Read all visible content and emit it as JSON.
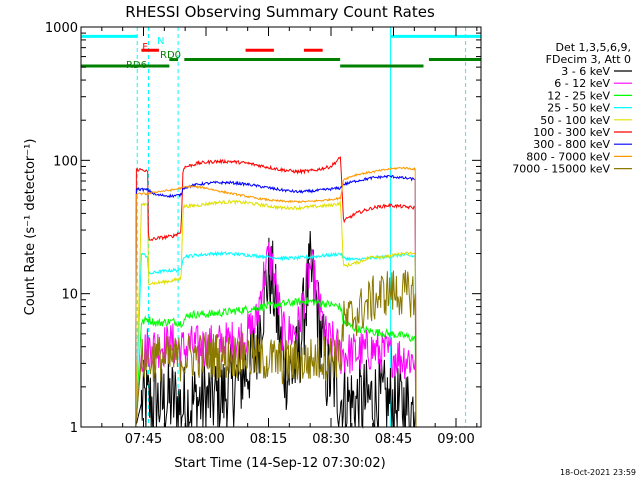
{
  "chart_data": {
    "type": "line",
    "title": "RHESSI Observing Summary Count Rates",
    "xlabel": "Start Time (14-Sep-12 07:30:02)",
    "ylabel": "Count Rate (s⁻¹ detector⁻¹)",
    "timestamp": "18-Oct-2021 23:59",
    "x_unit": "minutes after 07:30",
    "xlim": [
      0,
      96
    ],
    "ylim": [
      1,
      1000
    ],
    "y_scale": "log",
    "x_ticks": [
      {
        "value": 15,
        "label": "07:45"
      },
      {
        "value": 30,
        "label": "08:00"
      },
      {
        "value": 45,
        "label": "08:15"
      },
      {
        "value": 60,
        "label": "08:30"
      },
      {
        "value": 75,
        "label": "08:45"
      },
      {
        "value": 90,
        "label": "09:00"
      }
    ],
    "y_ticks": [
      {
        "value": 1,
        "label": "1"
      },
      {
        "value": 10,
        "label": "10"
      },
      {
        "value": 100,
        "label": "100"
      },
      {
        "value": 1000,
        "label": "1000"
      }
    ],
    "legend": {
      "placement": "right",
      "header": [
        "Det 1,3,5,6,9,",
        "FDecim 3, Att 0"
      ],
      "entries": [
        {
          "label": "3 - 6 keV",
          "color": "#000000"
        },
        {
          "label": "6 - 12 keV",
          "color": "#ff00ff"
        },
        {
          "label": "12 - 25 keV",
          "color": "#00ff00"
        },
        {
          "label": "25 - 50 keV",
          "color": "#00ffff"
        },
        {
          "label": "50 - 100 keV",
          "color": "#e0e000"
        },
        {
          "label": "100 - 300 keV",
          "color": "#ff0000"
        },
        {
          "label": "300 - 800 keV",
          "color": "#0000ff"
        },
        {
          "label": "800 - 7000 keV",
          "color": "#ff9900"
        },
        {
          "label": "7000 - 15000 keV",
          "color": "#8c7a00"
        }
      ]
    },
    "flags": [
      {
        "label": "N",
        "color": "#00ffff",
        "segments": [
          [
            0,
            13.5
          ],
          [
            74.3,
            96
          ]
        ],
        "level": 850
      },
      {
        "label": "F",
        "color": "#ff0000",
        "segments": [
          [
            14.5,
            18.7
          ],
          [
            39.5,
            46.3
          ],
          [
            53.5,
            58
          ]
        ],
        "level": 670
      },
      {
        "label": "RD0",
        "color": "#008000",
        "segments": [
          [
            21.2,
            23.3
          ],
          [
            24.8,
            62.2
          ],
          [
            83.5,
            96
          ]
        ],
        "level": 570
      },
      {
        "label": "RD6",
        "color": "#008000",
        "segments": [
          [
            0,
            14.5
          ],
          [
            14.5,
            21.2
          ],
          [
            62.2,
            82.2
          ]
        ],
        "level": 510
      }
    ],
    "cyan_markers": [
      0,
      13.5,
      16.2,
      23.3,
      74.3,
      92.3
    ],
    "data_start": 13.0,
    "data_end": 80.5,
    "series": [
      {
        "name": "3 - 6 keV",
        "color": "#000000",
        "points": [
          [
            13.1,
            1
          ],
          [
            14.5,
            1.5
          ],
          [
            16,
            1.5
          ],
          [
            18,
            1.5
          ],
          [
            22,
            1.6
          ],
          [
            24,
            1.4
          ],
          [
            26,
            1.5
          ],
          [
            30,
            1.6
          ],
          [
            34,
            1.7
          ],
          [
            38,
            2.3
          ],
          [
            40,
            2.8
          ],
          [
            42,
            3.5
          ],
          [
            43.5,
            8
          ],
          [
            45,
            14
          ],
          [
            46,
            12
          ],
          [
            47,
            7
          ],
          [
            48.5,
            3
          ],
          [
            50,
            2.5
          ],
          [
            52,
            3
          ],
          [
            54,
            9
          ],
          [
            55,
            14
          ],
          [
            56,
            11
          ],
          [
            57.5,
            5
          ],
          [
            59,
            2.5
          ],
          [
            61,
            2.2
          ],
          [
            62.3,
            1.6
          ],
          [
            66,
            1.5
          ],
          [
            70,
            1.6
          ],
          [
            74,
            1.5
          ],
          [
            78,
            1.4
          ],
          [
            80.2,
            1.3
          ],
          [
            80.4,
            1
          ]
        ]
      },
      {
        "name": "6 - 12 keV",
        "color": "#ff00ff",
        "points": [
          [
            13.1,
            1
          ],
          [
            14.5,
            3.5
          ],
          [
            16,
            4
          ],
          [
            18,
            4
          ],
          [
            22,
            4.2
          ],
          [
            24,
            3.8
          ],
          [
            26,
            4
          ],
          [
            30,
            4
          ],
          [
            34,
            4.2
          ],
          [
            38,
            4.5
          ],
          [
            40,
            5
          ],
          [
            42,
            6
          ],
          [
            43.5,
            12
          ],
          [
            45,
            19
          ],
          [
            46,
            16
          ],
          [
            47,
            10
          ],
          [
            48.5,
            5
          ],
          [
            50,
            5
          ],
          [
            52,
            5.5
          ],
          [
            54,
            11
          ],
          [
            55,
            16
          ],
          [
            56,
            13
          ],
          [
            57.5,
            7
          ],
          [
            59,
            4.5
          ],
          [
            61,
            4.2
          ],
          [
            62.3,
            3.5
          ],
          [
            66,
            3.6
          ],
          [
            70,
            3.8
          ],
          [
            74,
            3.5
          ],
          [
            78,
            3.3
          ],
          [
            80.2,
            3.2
          ],
          [
            80.4,
            1
          ]
        ]
      },
      {
        "name": "12 - 25 keV",
        "color": "#00ff00",
        "points": [
          [
            13.1,
            1
          ],
          [
            14.5,
            6
          ],
          [
            16,
            6.5
          ],
          [
            18,
            6
          ],
          [
            22,
            6.2
          ],
          [
            24,
            6
          ],
          [
            26,
            7
          ],
          [
            30,
            7
          ],
          [
            34,
            7.2
          ],
          [
            38,
            7.5
          ],
          [
            42,
            7.8
          ],
          [
            46,
            8.2
          ],
          [
            50,
            8.5
          ],
          [
            54,
            8.8
          ],
          [
            58,
            8.5
          ],
          [
            62.3,
            8
          ],
          [
            63,
            6
          ],
          [
            66,
            5.5
          ],
          [
            70,
            5.2
          ],
          [
            74,
            5
          ],
          [
            78,
            4.8
          ],
          [
            80.2,
            4.5
          ],
          [
            80.4,
            1
          ]
        ]
      },
      {
        "name": "25 - 50 keV",
        "color": "#00ffff",
        "points": [
          [
            13.1,
            1
          ],
          [
            14.5,
            20
          ],
          [
            16,
            19
          ],
          [
            16.2,
            14
          ],
          [
            18,
            14.5
          ],
          [
            22,
            15
          ],
          [
            24,
            15
          ],
          [
            24.5,
            19
          ],
          [
            28,
            19.5
          ],
          [
            32,
            20
          ],
          [
            36,
            20
          ],
          [
            40,
            19.5
          ],
          [
            44,
            19
          ],
          [
            48,
            18.5
          ],
          [
            52,
            18.5
          ],
          [
            56,
            19
          ],
          [
            60,
            19.5
          ],
          [
            62.3,
            20
          ],
          [
            63,
            18.5
          ],
          [
            66,
            18
          ],
          [
            70,
            18.5
          ],
          [
            74,
            19
          ],
          [
            77,
            19.5
          ],
          [
            80.2,
            19
          ],
          [
            80.4,
            1
          ]
        ]
      },
      {
        "name": "50 - 100 keV",
        "color": "#e0e000",
        "points": [
          [
            13.1,
            1
          ],
          [
            14.5,
            47
          ],
          [
            16,
            46
          ],
          [
            16.2,
            12
          ],
          [
            18,
            12
          ],
          [
            22,
            12.5
          ],
          [
            24,
            13
          ],
          [
            24.5,
            45
          ],
          [
            28,
            46
          ],
          [
            32,
            48
          ],
          [
            36,
            49
          ],
          [
            40,
            48
          ],
          [
            44,
            46
          ],
          [
            48,
            44
          ],
          [
            52,
            44
          ],
          [
            56,
            45
          ],
          [
            60,
            46
          ],
          [
            62.3,
            48
          ],
          [
            63,
            16
          ],
          [
            66,
            17
          ],
          [
            70,
            19
          ],
          [
            74,
            19
          ],
          [
            77,
            20
          ],
          [
            80.2,
            20
          ],
          [
            80.4,
            1
          ]
        ]
      },
      {
        "name": "100 - 300 keV",
        "color": "#ff0000",
        "points": [
          [
            13.1,
            1
          ],
          [
            13.3,
            85
          ],
          [
            15,
            85
          ],
          [
            16,
            82
          ],
          [
            16.2,
            25
          ],
          [
            18,
            26
          ],
          [
            22,
            27
          ],
          [
            24,
            29
          ],
          [
            24.5,
            88
          ],
          [
            28,
            95
          ],
          [
            32,
            98
          ],
          [
            36,
            98
          ],
          [
            40,
            95
          ],
          [
            44,
            90
          ],
          [
            48,
            85
          ],
          [
            52,
            82
          ],
          [
            56,
            84
          ],
          [
            60,
            90
          ],
          [
            62.3,
            105
          ],
          [
            63,
            35
          ],
          [
            66,
            40
          ],
          [
            70,
            44
          ],
          [
            74,
            46
          ],
          [
            77,
            45
          ],
          [
            80.2,
            44
          ],
          [
            80.4,
            1
          ]
        ]
      },
      {
        "name": "300 - 800 keV",
        "color": "#0000ff",
        "points": [
          [
            13.1,
            1
          ],
          [
            13.3,
            61
          ],
          [
            16,
            60
          ],
          [
            18,
            55
          ],
          [
            22,
            54
          ],
          [
            24,
            55
          ],
          [
            24.5,
            62
          ],
          [
            28,
            66
          ],
          [
            32,
            68
          ],
          [
            36,
            68
          ],
          [
            40,
            66
          ],
          [
            44,
            63
          ],
          [
            48,
            60
          ],
          [
            52,
            58
          ],
          [
            56,
            59
          ],
          [
            60,
            61
          ],
          [
            62.3,
            62
          ],
          [
            63,
            66
          ],
          [
            66,
            70
          ],
          [
            70,
            74
          ],
          [
            74,
            76
          ],
          [
            77,
            74
          ],
          [
            80.2,
            72
          ],
          [
            80.4,
            1
          ]
        ]
      },
      {
        "name": "800 - 7000 keV",
        "color": "#ff9900",
        "points": [
          [
            13.1,
            1
          ],
          [
            13.3,
            56
          ],
          [
            16,
            56
          ],
          [
            18,
            58
          ],
          [
            22,
            60
          ],
          [
            24,
            62
          ],
          [
            26,
            64
          ],
          [
            30,
            62
          ],
          [
            34,
            58
          ],
          [
            38,
            55
          ],
          [
            42,
            52
          ],
          [
            46,
            50
          ],
          [
            50,
            49
          ],
          [
            54,
            49
          ],
          [
            58,
            50
          ],
          [
            62.3,
            52
          ],
          [
            63,
            72
          ],
          [
            66,
            78
          ],
          [
            70,
            82
          ],
          [
            74,
            86
          ],
          [
            77,
            88
          ],
          [
            80.2,
            86
          ],
          [
            80.4,
            1
          ]
        ]
      },
      {
        "name": "7000 - 15000 keV",
        "color": "#8c7a00",
        "points": [
          [
            13.1,
            1
          ],
          [
            14.5,
            3.2
          ],
          [
            16,
            3.2
          ],
          [
            18,
            3.3
          ],
          [
            22,
            3.2
          ],
          [
            26,
            3.4
          ],
          [
            30,
            3.5
          ],
          [
            34,
            3.4
          ],
          [
            38,
            3.5
          ],
          [
            42,
            3.3
          ],
          [
            46,
            3.2
          ],
          [
            50,
            3.0
          ],
          [
            54,
            3.1
          ],
          [
            58,
            3.3
          ],
          [
            62.3,
            3.5
          ],
          [
            63,
            6
          ],
          [
            66,
            7
          ],
          [
            70,
            9
          ],
          [
            74,
            10.5
          ],
          [
            77,
            10
          ],
          [
            80.2,
            10
          ],
          [
            80.4,
            1
          ]
        ]
      }
    ]
  }
}
